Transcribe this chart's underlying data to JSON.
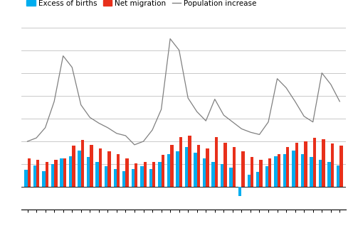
{
  "title": "",
  "legend_entries": [
    "Excess of births",
    "Net migration",
    "Population increase"
  ],
  "bar_colors": [
    "#00adef",
    "#e8301b"
  ],
  "line_color": "#808080",
  "n_months": 36,
  "excess_births": [
    1500,
    1900,
    1400,
    2000,
    2500,
    2700,
    3200,
    2600,
    2200,
    1800,
    1600,
    1400,
    1600,
    1800,
    1600,
    2200,
    2900,
    3100,
    3500,
    3000,
    2500,
    2200,
    2000,
    1700,
    -800,
    1100,
    1300,
    1800,
    2700,
    2900,
    3200,
    2900,
    2600,
    2400,
    2200,
    1900
  ],
  "net_migration": [
    2500,
    2400,
    2200,
    2400,
    2500,
    3600,
    4100,
    3700,
    3400,
    3100,
    2900,
    2500,
    2100,
    2200,
    2200,
    2800,
    3700,
    4400,
    4500,
    3700,
    3400,
    4400,
    3900,
    3500,
    3100,
    2600,
    2400,
    2500,
    2900,
    3500,
    3900,
    4000,
    4300,
    4200,
    3800,
    3600
  ],
  "population_increase": [
    4000,
    4300,
    5200,
    7500,
    11500,
    10500,
    7200,
    6100,
    5600,
    5200,
    4700,
    4500,
    3700,
    4000,
    5000,
    6800,
    13000,
    12000,
    7800,
    6600,
    5800,
    7700,
    6300,
    5700,
    5100,
    4800,
    4600,
    5700,
    9500,
    8700,
    7500,
    6200,
    5700,
    10000,
    9000,
    7500
  ],
  "ylim": [
    -2000,
    14000
  ],
  "ytick_positions": [
    -2000,
    0,
    2000,
    4000,
    6000,
    8000,
    10000,
    12000,
    14000
  ],
  "background_color": "#ffffff",
  "plot_bg_color": "#ffffff",
  "grid_color": "#c0c0c0",
  "bar_width": 0.35,
  "figsize": [
    4.96,
    3.21
  ],
  "dpi": 100
}
